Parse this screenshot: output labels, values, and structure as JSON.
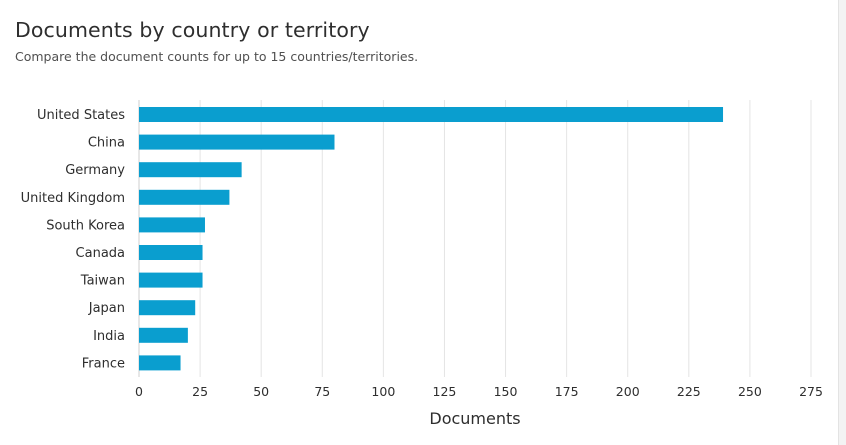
{
  "header": {
    "title": "Documents by country or territory",
    "subtitle": "Compare the document counts for up to 15 countries/territories."
  },
  "chart_data": {
    "type": "bar",
    "orientation": "horizontal",
    "title": "Documents by country or territory",
    "subtitle": "Compare the document counts for up to 15 countries/territories.",
    "categories": [
      "United States",
      "China",
      "Germany",
      "United Kingdom",
      "South Korea",
      "Canada",
      "Taiwan",
      "Japan",
      "India",
      "France"
    ],
    "values": [
      239,
      80,
      42,
      37,
      27,
      26,
      26,
      23,
      20,
      17
    ],
    "xlabel": "Documents",
    "ylabel": "",
    "xlim": [
      0,
      275
    ],
    "xticks": [
      0,
      25,
      50,
      75,
      100,
      125,
      150,
      175,
      200,
      225,
      250,
      275
    ],
    "grid": true,
    "legend": "none",
    "bar_color": "#0a9ecf"
  },
  "colors": {
    "bar": "#0a9ecf",
    "grid": "#e4e4e4",
    "axis": "#cfcfcf",
    "text": "#2e2e2e"
  }
}
